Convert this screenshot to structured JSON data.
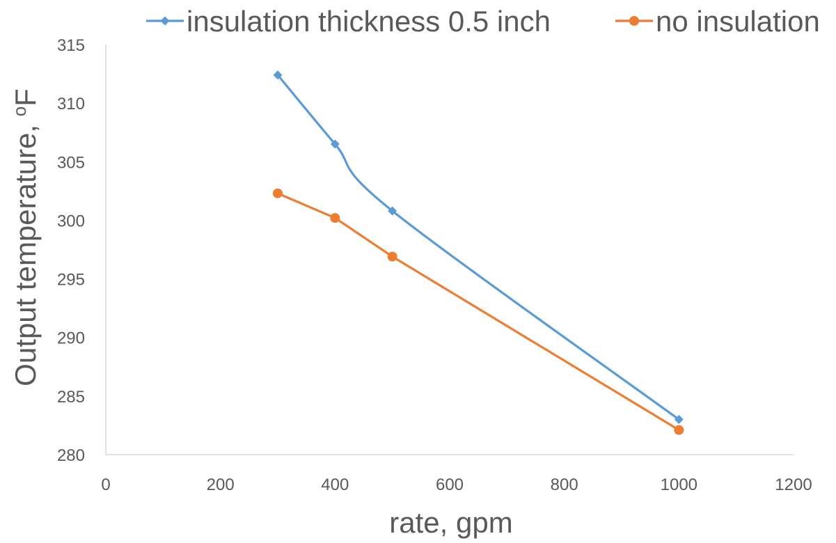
{
  "chart_data": {
    "type": "line",
    "title": "",
    "xlabel": "rate, gpm",
    "ylabel_main": "Output temperature, ",
    "ylabel_sup": "o",
    "ylabel_unit": "F",
    "xlim": [
      0,
      1200
    ],
    "ylim": [
      280,
      315
    ],
    "xticks": [
      "0",
      "200",
      "400",
      "600",
      "800",
      "1000",
      "1200"
    ],
    "yticks": [
      "280",
      "285",
      "290",
      "295",
      "300",
      "305",
      "310",
      "315"
    ],
    "grid": false,
    "legend_position": "top",
    "series": [
      {
        "name": "insulation thickness 0.5 inch",
        "color": "#5B9BD5",
        "marker": "diamond",
        "smooth": true,
        "x": [
          300,
          400,
          500,
          1000
        ],
        "y": [
          312.4,
          306.5,
          300.8,
          283.0
        ]
      },
      {
        "name": "no insulation",
        "color": "#ED7D31",
        "marker": "circle",
        "smooth": false,
        "x": [
          300,
          400,
          500,
          1000
        ],
        "y": [
          302.3,
          300.2,
          296.9,
          282.1
        ]
      }
    ]
  }
}
